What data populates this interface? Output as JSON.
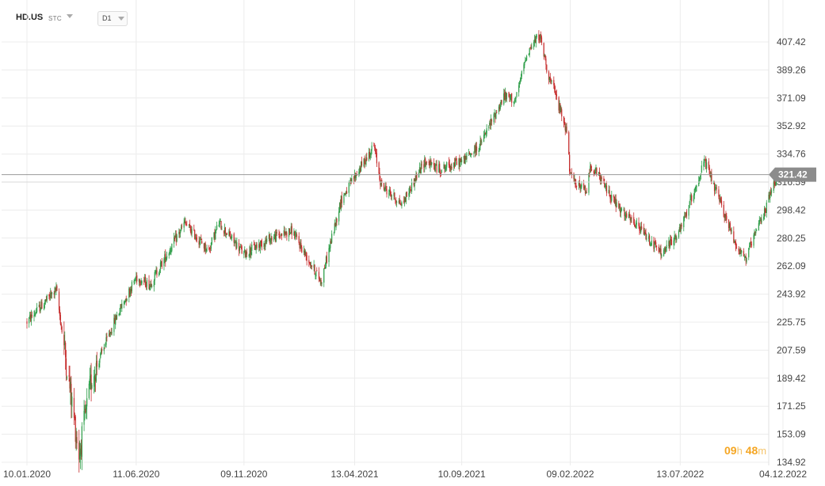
{
  "header": {
    "symbol": "HD.US",
    "instrument_type": "STC",
    "timeframe": "D1"
  },
  "timer": {
    "hours": "09",
    "hours_unit": "h",
    "minutes": "48",
    "minutes_unit": "m"
  },
  "colors": {
    "up": "#2e9e49",
    "down": "#c62d2d",
    "price_line": "#999999",
    "price_tag": "#8c8c8c",
    "grid": "#ececec",
    "accent": "#f5a623"
  },
  "chart_data": {
    "type": "candlestick",
    "y_axis_labels": [
      "407.42",
      "389.26",
      "371.09",
      "352.92",
      "334.76",
      "316.59",
      "298.42",
      "280.25",
      "262.09",
      "243.92",
      "225.75",
      "207.59",
      "189.42",
      "171.25",
      "153.09",
      "134.92"
    ],
    "ylim": [
      134.92,
      407.42
    ],
    "x_axis_labels": [
      "10.01.2020",
      "11.06.2020",
      "09.11.2020",
      "13.04.2021",
      "10.09.2021",
      "09.02.2022",
      "13.07.2022",
      "04.12.2022"
    ],
    "xlim": [
      "2020-01-10",
      "2022-12-04"
    ],
    "grid": true,
    "current_price": "321.42",
    "reference_level": 316.59,
    "path_anchors": [
      {
        "t": "2020-01-10",
        "v": 226
      },
      {
        "t": "2020-02-20",
        "v": 247
      },
      {
        "t": "2020-02-28",
        "v": 220
      },
      {
        "t": "2020-03-23",
        "v": 140
      },
      {
        "t": "2020-04-10",
        "v": 190
      },
      {
        "t": "2020-05-15",
        "v": 230
      },
      {
        "t": "2020-06-11",
        "v": 255
      },
      {
        "t": "2020-06-30",
        "v": 250
      },
      {
        "t": "2020-08-18",
        "v": 290
      },
      {
        "t": "2020-09-20",
        "v": 272
      },
      {
        "t": "2020-10-05",
        "v": 290
      },
      {
        "t": "2020-11-09",
        "v": 270
      },
      {
        "t": "2020-12-15",
        "v": 280
      },
      {
        "t": "2021-01-15",
        "v": 285
      },
      {
        "t": "2021-02-25",
        "v": 252
      },
      {
        "t": "2021-03-25",
        "v": 305
      },
      {
        "t": "2021-04-13",
        "v": 320
      },
      {
        "t": "2021-05-10",
        "v": 340
      },
      {
        "t": "2021-05-20",
        "v": 315
      },
      {
        "t": "2021-06-18",
        "v": 302
      },
      {
        "t": "2021-07-20",
        "v": 330
      },
      {
        "t": "2021-08-10",
        "v": 325
      },
      {
        "t": "2021-09-10",
        "v": 330
      },
      {
        "t": "2021-10-05",
        "v": 340
      },
      {
        "t": "2021-11-08",
        "v": 372
      },
      {
        "t": "2021-11-25",
        "v": 370
      },
      {
        "t": "2021-12-10",
        "v": 400
      },
      {
        "t": "2021-12-28",
        "v": 412
      },
      {
        "t": "2022-01-10",
        "v": 385
      },
      {
        "t": "2022-01-18",
        "v": 375
      },
      {
        "t": "2022-02-04",
        "v": 350
      },
      {
        "t": "2022-02-09",
        "v": 320
      },
      {
        "t": "2022-03-03",
        "v": 310
      },
      {
        "t": "2022-03-10",
        "v": 328
      },
      {
        "t": "2022-04-20",
        "v": 298
      },
      {
        "t": "2022-05-20",
        "v": 285
      },
      {
        "t": "2022-06-17",
        "v": 270
      },
      {
        "t": "2022-07-13",
        "v": 285
      },
      {
        "t": "2022-08-16",
        "v": 330
      },
      {
        "t": "2022-09-30",
        "v": 275
      },
      {
        "t": "2022-10-13",
        "v": 267
      },
      {
        "t": "2022-11-10",
        "v": 300
      },
      {
        "t": "2022-11-23",
        "v": 318
      },
      {
        "t": "2022-11-29",
        "v": 321
      }
    ]
  }
}
